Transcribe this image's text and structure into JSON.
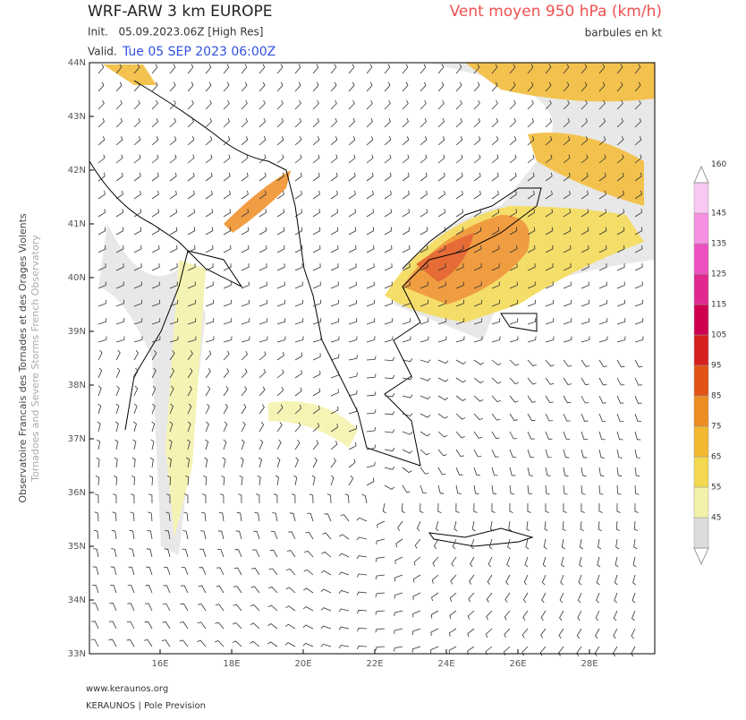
{
  "header": {
    "title": "WRF-ARW 3 km EUROPE",
    "init": "Init.   05.09.2023.06Z [High Res]",
    "valid_label": "Valid.",
    "valid": "Tue 05 SEP 2023 06:00Z",
    "field": "Vent moyen 950 hPa (km/h)",
    "units_note": "barbules en kt"
  },
  "side_text": [
    "Observatoire Francais des Tornades et des Orages Violents",
    "Tornadoes and Severe Storms French Observatory"
  ],
  "lat_labels": [
    "44N",
    "43N",
    "42N",
    "41N",
    "40N",
    "39N",
    "38N",
    "37N",
    "36N",
    "35N",
    "34N",
    "33N"
  ],
  "lon_labels": [
    "16E",
    "18E",
    "20E",
    "22E",
    "24E",
    "26E",
    "28E"
  ],
  "colorbar": {
    "ticks": [
      45,
      55,
      65,
      75,
      85,
      95,
      105,
      115,
      125,
      135,
      145,
      160
    ],
    "colors": [
      "#dcdcdc",
      "#f4f2a8",
      "#f3d850",
      "#f2b830",
      "#ee8c22",
      "#e25214",
      "#d8201e",
      "#d00050",
      "#e02890",
      "#ee50c0",
      "#f590e0",
      "#f8c8f2"
    ]
  },
  "footer": [
    "www.keraunos.org",
    "KERAUNOS | Pole Prevision"
  ]
}
